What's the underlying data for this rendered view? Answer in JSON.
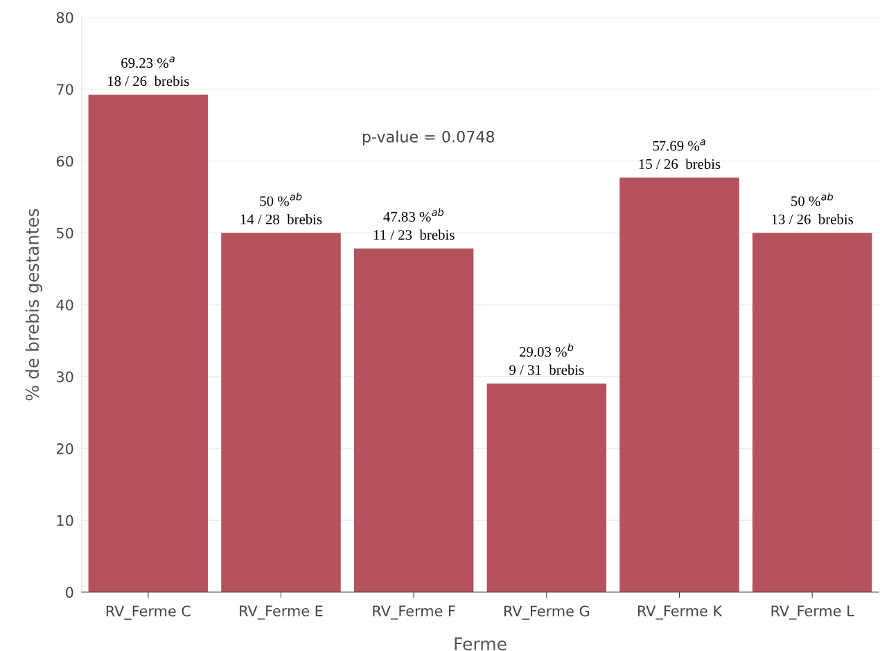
{
  "chart_data": {
    "type": "bar",
    "xlabel": "Ferme",
    "ylabel": "% de brebis gestantes",
    "categories": [
      "RV_Ferme C",
      "RV_Ferme E",
      "RV_Ferme F",
      "RV_Ferme G",
      "RV_Ferme K",
      "RV_Ferme L"
    ],
    "values": [
      69.23,
      50,
      47.83,
      29.03,
      57.69,
      50
    ],
    "value_labels": [
      "69.23 %$^{a}$\n18 / 26  brebis",
      "50 %$^{ab}$\n14 / 28  brebis",
      "47.83 %$^{ab}$\n11 / 23  brebis",
      "29.03 %$^{b}$\n9 / 31  brebis",
      "57.69 %$^{a}$\n15 / 26  brebis",
      "50 %$^{ab}$\n13 / 26  brebis"
    ],
    "color": "#b5525c",
    "ylim": [
      0,
      80
    ],
    "yticks": [
      0,
      10,
      20,
      30,
      40,
      50,
      60,
      70,
      80
    ],
    "grid": "y",
    "annotations": [
      "p-value = 0.0748"
    ]
  }
}
